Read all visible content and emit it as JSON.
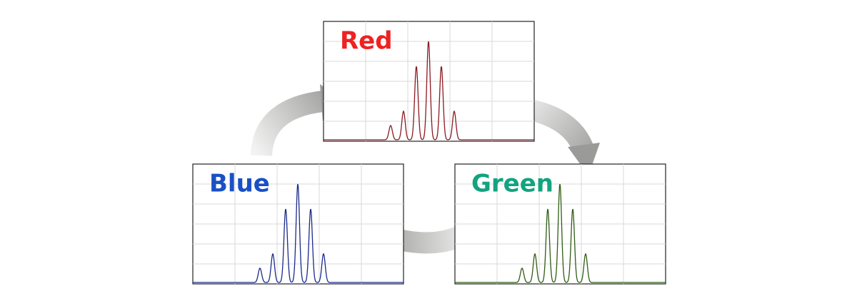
{
  "panels": [
    {
      "label": "Red"
    },
    {
      "label": "Blue"
    },
    {
      "label": "Green"
    }
  ]
}
